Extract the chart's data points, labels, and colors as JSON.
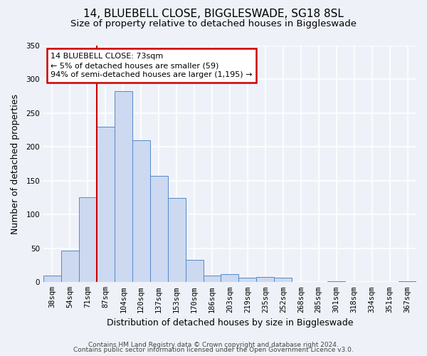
{
  "title": "14, BLUEBELL CLOSE, BIGGLESWADE, SG18 8SL",
  "subtitle": "Size of property relative to detached houses in Biggleswade",
  "xlabel": "Distribution of detached houses by size in Biggleswade",
  "ylabel": "Number of detached properties",
  "bin_labels": [
    "38sqm",
    "54sqm",
    "71sqm",
    "87sqm",
    "104sqm",
    "120sqm",
    "137sqm",
    "153sqm",
    "170sqm",
    "186sqm",
    "203sqm",
    "219sqm",
    "235sqm",
    "252sqm",
    "268sqm",
    "285sqm",
    "301sqm",
    "318sqm",
    "334sqm",
    "351sqm",
    "367sqm"
  ],
  "bar_heights": [
    10,
    47,
    126,
    230,
    283,
    210,
    157,
    125,
    33,
    10,
    12,
    7,
    8,
    7,
    0,
    0,
    1,
    0,
    0,
    0,
    1
  ],
  "bar_color": "#ccd9f0",
  "bar_edge_color": "#5588cc",
  "ylim": [
    0,
    350
  ],
  "yticks": [
    0,
    50,
    100,
    150,
    200,
    250,
    300,
    350
  ],
  "marker_bin_index": 2,
  "annotation_title": "14 BLUEBELL CLOSE: 73sqm",
  "annotation_line1": "← 5% of detached houses are smaller (59)",
  "annotation_line2": "94% of semi-detached houses are larger (1,195) →",
  "annotation_box_color": "#ffffff",
  "annotation_box_edge_color": "#cc0000",
  "marker_line_color": "#cc0000",
  "footer1": "Contains HM Land Registry data © Crown copyright and database right 2024.",
  "footer2": "Contains public sector information licensed under the Open Government Licence v3.0.",
  "background_color": "#eef2f8",
  "grid_color": "#ffffff",
  "title_fontsize": 11,
  "subtitle_fontsize": 9.5,
  "axis_label_fontsize": 9,
  "tick_fontsize": 7.5,
  "footer_fontsize": 6.5
}
